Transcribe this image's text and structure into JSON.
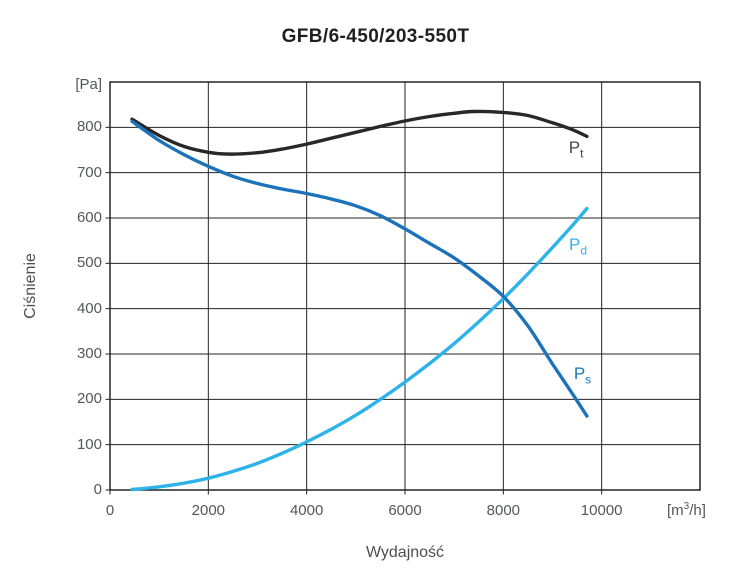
{
  "window": {
    "background": "#ffffff"
  },
  "chart_data": {
    "type": "line",
    "title": "GFB/6-450/203-550T",
    "xlabel": "Wydajność",
    "ylabel": "Ciśnienie",
    "y_unit": "[Pa]",
    "x_unit": {
      "prefix": "[m",
      "sup": "3",
      "suffix": "/h]"
    },
    "xlim": [
      0,
      12000
    ],
    "ylim": [
      0,
      900
    ],
    "x_ticks": [
      0,
      2000,
      4000,
      6000,
      8000,
      10000
    ],
    "y_ticks": [
      0,
      100,
      200,
      300,
      400,
      500,
      600,
      700,
      800
    ],
    "grid": true,
    "grid_x_step": 2000,
    "grid_y_step": 100,
    "grid_color": "#232323",
    "series": [
      {
        "name": "Pt",
        "label_main": "P",
        "label_sub": "t",
        "color": "#282828",
        "label_color": "#45454d",
        "label_at": [
          9480,
          755
        ],
        "points": [
          [
            450,
            818
          ],
          [
            1000,
            782
          ],
          [
            1500,
            758
          ],
          [
            2000,
            745
          ],
          [
            2400,
            741
          ],
          [
            3000,
            744
          ],
          [
            3500,
            752
          ],
          [
            4000,
            763
          ],
          [
            4500,
            776
          ],
          [
            5000,
            789
          ],
          [
            5500,
            802
          ],
          [
            6000,
            814
          ],
          [
            6500,
            824
          ],
          [
            7000,
            831
          ],
          [
            7400,
            835
          ],
          [
            8000,
            833
          ],
          [
            8500,
            826
          ],
          [
            9000,
            810
          ],
          [
            9400,
            795
          ],
          [
            9700,
            780
          ]
        ]
      },
      {
        "name": "Pd",
        "label_main": "P",
        "label_sub": "d",
        "color": "#2eb3e8",
        "label_color": "#2eb3e8",
        "label_at": [
          9520,
          540
        ],
        "points": [
          [
            450,
            1
          ],
          [
            1000,
            7
          ],
          [
            1500,
            15
          ],
          [
            2000,
            26
          ],
          [
            2500,
            41
          ],
          [
            3000,
            59
          ],
          [
            3500,
            81
          ],
          [
            4000,
            106
          ],
          [
            4500,
            134
          ],
          [
            5000,
            165
          ],
          [
            5500,
            200
          ],
          [
            6000,
            238
          ],
          [
            6500,
            279
          ],
          [
            7000,
            323
          ],
          [
            7500,
            371
          ],
          [
            8000,
            422
          ],
          [
            8500,
            477
          ],
          [
            9000,
            535
          ],
          [
            9400,
            583
          ],
          [
            9700,
            621
          ]
        ]
      },
      {
        "name": "Ps",
        "label_main": "P",
        "label_sub": "s",
        "color": "#1d73b9",
        "label_color": "#1d73b9",
        "label_at": [
          9610,
          255
        ],
        "points": [
          [
            450,
            813
          ],
          [
            1000,
            771
          ],
          [
            1500,
            740
          ],
          [
            2000,
            714
          ],
          [
            2500,
            692
          ],
          [
            3000,
            676
          ],
          [
            3500,
            664
          ],
          [
            4000,
            654
          ],
          [
            4500,
            642
          ],
          [
            5000,
            627
          ],
          [
            5500,
            605
          ],
          [
            6000,
            576
          ],
          [
            6500,
            544
          ],
          [
            7000,
            512
          ],
          [
            7500,
            472
          ],
          [
            8000,
            427
          ],
          [
            8500,
            362
          ],
          [
            9000,
            278
          ],
          [
            9400,
            213
          ],
          [
            9700,
            163
          ]
        ]
      }
    ]
  }
}
